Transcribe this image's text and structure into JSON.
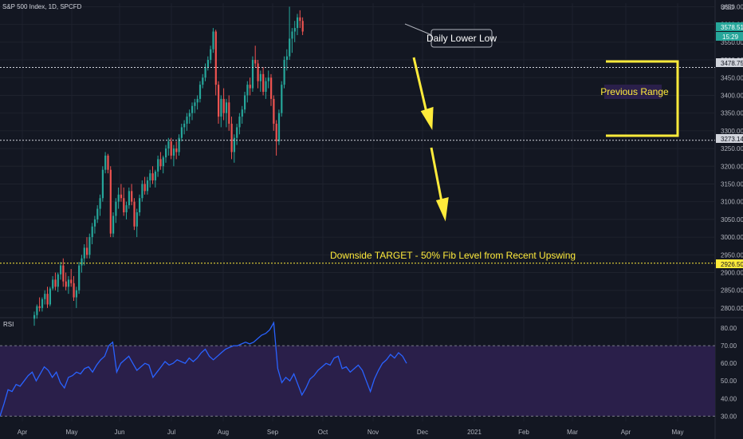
{
  "header": {
    "symbol_title": "S&P 500 Index, 1D, SPCFD",
    "currency": "USD"
  },
  "price_labels": {
    "last_price": "3578.51",
    "countdown": "15:29",
    "upper_line": "3478.75",
    "lower_line": "3273.14",
    "target_line": "2926.50"
  },
  "annotations": {
    "daily_lower_low": "Daily Lower Low",
    "previous_range": "Previous Range",
    "downside_target": "Downside TARGET - 50% Fib Level from Recent Upswing"
  },
  "rsi_panel": {
    "label": "RSI",
    "upper_band": 70,
    "lower_band": 30
  },
  "colors": {
    "background": "#131722",
    "up_candle": "#26a69a",
    "down_candle": "#ef5350",
    "rsi_line": "#2962ff",
    "rsi_band_fill": "#2a1f4a",
    "annotation_yellow": "#ffeb3b",
    "level_line_white": "#d1d4dc"
  },
  "chart_data": [
    {
      "type": "candlestick",
      "title": "S&P 500 Index, 1D, SPCFD",
      "ylabel": "USD",
      "ylim": [
        2775,
        3660
      ],
      "y_ticks": [
        2800,
        2850,
        2900,
        2950,
        3000,
        3050,
        3100,
        3150,
        3200,
        3250,
        3300,
        3350,
        3400,
        3450,
        3500,
        3550,
        3600,
        3650
      ],
      "x_ticks": [
        "Apr",
        "May",
        "Jun",
        "Jul",
        "Aug",
        "Sep",
        "Oct",
        "Nov",
        "Dec",
        "2021",
        "Feb",
        "Mar",
        "Apr",
        "May"
      ],
      "series": [
        {
          "values": [
            [
              2770,
              2790,
              2750,
              2780
            ],
            [
              2780,
              2810,
              2770,
              2805
            ],
            [
              2805,
              2830,
              2790,
              2800
            ],
            [
              2800,
              2830,
              2790,
              2825
            ],
            [
              2825,
              2850,
              2810,
              2840
            ],
            [
              2840,
              2860,
              2800,
              2810
            ],
            [
              2810,
              2860,
              2805,
              2855
            ],
            [
              2855,
              2890,
              2850,
              2880
            ],
            [
              2880,
              2900,
              2850,
              2860
            ],
            [
              2860,
              2900,
              2845,
              2895
            ],
            [
              2895,
              2930,
              2880,
              2920
            ],
            [
              2920,
              2940,
              2860,
              2875
            ],
            [
              2875,
              2900,
              2850,
              2860
            ],
            [
              2860,
              2890,
              2840,
              2880
            ],
            [
              2880,
              2910,
              2860,
              2870
            ],
            [
              2870,
              2890,
              2820,
              2830
            ],
            [
              2830,
              2860,
              2800,
              2850
            ],
            [
              2850,
              2930,
              2840,
              2920
            ],
            [
              2920,
              2950,
              2900,
              2940
            ],
            [
              2940,
              2980,
              2920,
              2970
            ],
            [
              2970,
              3000,
              2940,
              2950
            ],
            [
              2950,
              3010,
              2940,
              3000
            ],
            [
              3000,
              3040,
              2980,
              3030
            ],
            [
              3030,
              3060,
              3010,
              3050
            ],
            [
              3050,
              3090,
              3040,
              3080
            ],
            [
              3080,
              3120,
              3060,
              3110
            ],
            [
              3110,
              3200,
              3100,
              3190
            ],
            [
              3190,
              3240,
              3180,
              3230
            ],
            [
              3230,
              3235,
              3180,
              3190
            ],
            [
              3190,
              3200,
              3000,
              3010
            ],
            [
              3010,
              3070,
              3000,
              3060
            ],
            [
              3060,
              3110,
              3040,
              3100
            ],
            [
              3100,
              3140,
              3080,
              3120
            ],
            [
              3120,
              3150,
              3100,
              3110
            ],
            [
              3110,
              3140,
              3060,
              3070
            ],
            [
              3070,
              3100,
              3050,
              3090
            ],
            [
              3090,
              3140,
              3080,
              3130
            ],
            [
              3130,
              3150,
              3090,
              3100
            ],
            [
              3100,
              3110,
              3020,
              3030
            ],
            [
              3030,
              3080,
              3000,
              3070
            ],
            [
              3070,
              3120,
              3060,
              3110
            ],
            [
              3110,
              3160,
              3100,
              3150
            ],
            [
              3150,
              3170,
              3120,
              3130
            ],
            [
              3130,
              3170,
              3120,
              3160
            ],
            [
              3160,
              3190,
              3140,
              3180
            ],
            [
              3180,
              3200,
              3150,
              3160
            ],
            [
              3160,
              3190,
              3140,
              3185
            ],
            [
              3185,
              3230,
              3170,
              3220
            ],
            [
              3220,
              3240,
              3190,
              3200
            ],
            [
              3200,
              3230,
              3180,
              3225
            ],
            [
              3225,
              3260,
              3210,
              3250
            ],
            [
              3250,
              3280,
              3230,
              3270
            ],
            [
              3270,
              3280,
              3220,
              3230
            ],
            [
              3230,
              3260,
              3200,
              3250
            ],
            [
              3250,
              3270,
              3220,
              3240
            ],
            [
              3240,
              3290,
              3230,
              3280
            ],
            [
              3280,
              3320,
              3270,
              3310
            ],
            [
              3310,
              3330,
              3290,
              3320
            ],
            [
              3320,
              3350,
              3300,
              3340
            ],
            [
              3340,
              3360,
              3320,
              3350
            ],
            [
              3350,
              3380,
              3330,
              3370
            ],
            [
              3370,
              3390,
              3350,
              3380
            ],
            [
              3380,
              3400,
              3360,
              3390
            ],
            [
              3390,
              3440,
              3380,
              3430
            ],
            [
              3430,
              3460,
              3420,
              3450
            ],
            [
              3450,
              3490,
              3440,
              3480
            ],
            [
              3480,
              3510,
              3470,
              3500
            ],
            [
              3500,
              3540,
              3490,
              3530
            ],
            [
              3530,
              3590,
              3520,
              3580
            ],
            [
              3580,
              3585,
              3400,
              3430
            ],
            [
              3430,
              3440,
              3320,
              3340
            ],
            [
              3340,
              3400,
              3310,
              3390
            ],
            [
              3390,
              3420,
              3330,
              3350
            ],
            [
              3350,
              3390,
              3310,
              3380
            ],
            [
              3380,
              3400,
              3300,
              3320
            ],
            [
              3320,
              3340,
              3220,
              3240
            ],
            [
              3240,
              3290,
              3210,
              3280
            ],
            [
              3280,
              3320,
              3260,
              3310
            ],
            [
              3310,
              3350,
              3290,
              3340
            ],
            [
              3340,
              3370,
              3320,
              3360
            ],
            [
              3360,
              3410,
              3350,
              3400
            ],
            [
              3400,
              3440,
              3380,
              3430
            ],
            [
              3430,
              3450,
              3400,
              3420
            ],
            [
              3420,
              3510,
              3410,
              3500
            ],
            [
              3500,
              3540,
              3480,
              3490
            ],
            [
              3490,
              3500,
              3420,
              3440
            ],
            [
              3440,
              3470,
              3410,
              3460
            ],
            [
              3460,
              3480,
              3400,
              3410
            ],
            [
              3410,
              3450,
              3390,
              3440
            ],
            [
              3440,
              3470,
              3420,
              3450
            ],
            [
              3450,
              3460,
              3370,
              3390
            ],
            [
              3390,
              3400,
              3300,
              3320
            ],
            [
              3320,
              3330,
              3230,
              3270
            ],
            [
              3270,
              3360,
              3260,
              3350
            ],
            [
              3350,
              3440,
              3340,
              3430
            ],
            [
              3430,
              3510,
              3420,
              3500
            ],
            [
              3500,
              3530,
              3470,
              3510
            ],
            [
              3510,
              3650,
              3500,
              3560
            ],
            [
              3560,
              3590,
              3520,
              3580
            ],
            [
              3580,
              3610,
              3550,
              3590
            ],
            [
              3590,
              3630,
              3570,
              3620
            ],
            [
              3620,
              3640,
              3590,
              3610
            ],
            [
              3610,
              3620,
              3570,
              3580
            ]
          ]
        }
      ],
      "levels": [
        3478.75,
        3273.14,
        2926.5
      ]
    },
    {
      "type": "line",
      "title": "RSI",
      "ylim": [
        27,
        85
      ],
      "y_ticks": [
        30,
        40,
        50,
        60,
        70,
        80
      ],
      "series": [
        {
          "values": [
            30,
            37,
            45,
            44,
            48,
            47,
            50,
            53,
            55,
            50,
            54,
            58,
            56,
            52,
            55,
            49,
            46,
            52,
            53,
            55,
            54,
            57,
            58,
            55,
            59,
            62,
            64,
            70,
            72,
            55,
            60,
            62,
            64,
            60,
            56,
            58,
            60,
            59,
            52,
            55,
            58,
            61,
            59,
            60,
            62,
            61,
            60,
            63,
            61,
            63,
            66,
            68,
            64,
            62,
            64,
            66,
            68,
            69,
            70,
            70,
            71,
            72,
            71,
            72,
            74,
            76,
            77,
            79,
            83,
            57,
            49,
            52,
            50,
            54,
            48,
            42,
            46,
            51,
            53,
            56,
            58,
            60,
            59,
            63,
            64,
            57,
            58,
            55,
            57,
            59,
            56,
            50,
            44,
            51,
            56,
            60,
            62,
            65,
            63,
            66,
            64,
            60
          ]
        }
      ]
    }
  ]
}
